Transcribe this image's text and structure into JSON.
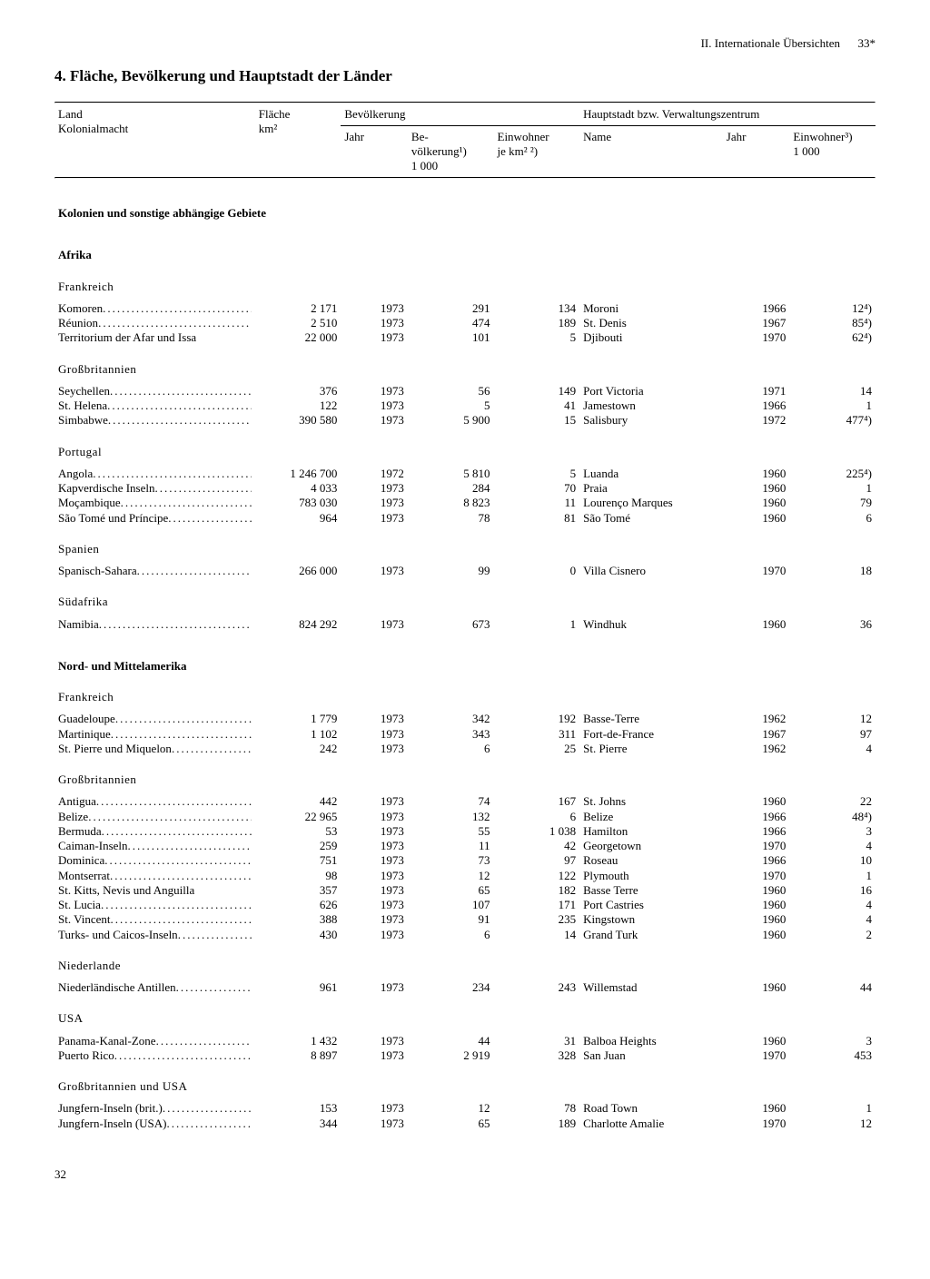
{
  "header": {
    "right": "II. Internationale Übersichten",
    "pagestar": "33*"
  },
  "title": "4. Fläche, Bevölkerung und Hauptstadt der Länder",
  "columns": {
    "country_top": "Land",
    "country_sub": "Kolonialmacht",
    "area_top": "Fläche",
    "area_sub": "km²",
    "pop_group": "Bevölkerung",
    "pop_year": "Jahr",
    "pop_val": "Be-\nvölkerung¹)\n1 000",
    "pop_dens": "Einwohner\nje km² ²)",
    "capital_group": "Hauptstadt bzw. Verwaltungszentrum",
    "cap_name": "Name",
    "cap_year": "Jahr",
    "cap_inh": "Einwohner³)\n1 000"
  },
  "section_main": "Kolonien und sonstige abhängige Gebiete",
  "footer_page": "32",
  "groups": [
    {
      "region": "Afrika",
      "powers": [
        {
          "power": "Frankreich",
          "rows": [
            {
              "name": "Komoren",
              "area": "2 171",
              "py": "1973",
              "pop": "291",
              "dens": "134",
              "cap": "Moroni",
              "cy": "1966",
              "inh": "12⁴)"
            },
            {
              "name": "Réunion",
              "area": "2 510",
              "py": "1973",
              "pop": "474",
              "dens": "189",
              "cap": "St. Denis",
              "cy": "1967",
              "inh": "85⁴)"
            },
            {
              "name": "Territorium der Afar und Issa",
              "nodots": true,
              "area": "22 000",
              "py": "1973",
              "pop": "101",
              "dens": "5",
              "cap": "Djibouti",
              "cy": "1970",
              "inh": "62⁴)"
            }
          ]
        },
        {
          "power": "Großbritannien",
          "rows": [
            {
              "name": "Seychellen",
              "area": "376",
              "py": "1973",
              "pop": "56",
              "dens": "149",
              "cap": "Port Victoria",
              "cy": "1971",
              "inh": "14"
            },
            {
              "name": "St. Helena",
              "area": "122",
              "py": "1973",
              "pop": "5",
              "dens": "41",
              "cap": "Jamestown",
              "cy": "1966",
              "inh": "1"
            },
            {
              "name": "Simbabwe",
              "area": "390 580",
              "py": "1973",
              "pop": "5 900",
              "dens": "15",
              "cap": "Salisbury",
              "cy": "1972",
              "inh": "477⁴)"
            }
          ]
        },
        {
          "power": "Portugal",
          "rows": [
            {
              "name": "Angola",
              "area": "1 246 700",
              "py": "1972",
              "pop": "5 810",
              "dens": "5",
              "cap": "Luanda",
              "cy": "1960",
              "inh": "225⁴)"
            },
            {
              "name": "Kapverdische Inseln",
              "area": "4 033",
              "py": "1973",
              "pop": "284",
              "dens": "70",
              "cap": "Praia",
              "cy": "1960",
              "inh": "1"
            },
            {
              "name": "Moçambique",
              "area": "783 030",
              "py": "1973",
              "pop": "8 823",
              "dens": "11",
              "cap": "Lourenço Marques",
              "cy": "1960",
              "inh": "79"
            },
            {
              "name": "São Tomé und Príncipe",
              "area": "964",
              "py": "1973",
              "pop": "78",
              "dens": "81",
              "cap": "São Tomé",
              "cy": "1960",
              "inh": "6"
            }
          ]
        },
        {
          "power": "Spanien",
          "rows": [
            {
              "name": "Spanisch-Sahara",
              "area": "266 000",
              "py": "1973",
              "pop": "99",
              "dens": "0",
              "cap": "Villa Cisnero",
              "cy": "1970",
              "inh": "18"
            }
          ]
        },
        {
          "power": "Südafrika",
          "rows": [
            {
              "name": "Namibia",
              "area": "824 292",
              "py": "1973",
              "pop": "673",
              "dens": "1",
              "cap": "Windhuk",
              "cy": "1960",
              "inh": "36"
            }
          ]
        }
      ]
    },
    {
      "region": "Nord- und Mittelamerika",
      "powers": [
        {
          "power": "Frankreich",
          "rows": [
            {
              "name": "Guadeloupe",
              "area": "1 779",
              "py": "1973",
              "pop": "342",
              "dens": "192",
              "cap": "Basse-Terre",
              "cy": "1962",
              "inh": "12"
            },
            {
              "name": "Martinique",
              "area": "1 102",
              "py": "1973",
              "pop": "343",
              "dens": "311",
              "cap": "Fort-de-France",
              "cy": "1967",
              "inh": "97"
            },
            {
              "name": "St. Pierre und Miquelon",
              "area": "242",
              "py": "1973",
              "pop": "6",
              "dens": "25",
              "cap": "St. Pierre",
              "cy": "1962",
              "inh": "4"
            }
          ]
        },
        {
          "power": "Großbritannien",
          "rows": [
            {
              "name": "Antigua",
              "area": "442",
              "py": "1973",
              "pop": "74",
              "dens": "167",
              "cap": "St. Johns",
              "cy": "1960",
              "inh": "22"
            },
            {
              "name": "Belize",
              "area": "22 965",
              "py": "1973",
              "pop": "132",
              "dens": "6",
              "cap": "Belize",
              "cy": "1966",
              "inh": "48⁴)"
            },
            {
              "name": "Bermuda",
              "area": "53",
              "py": "1973",
              "pop": "55",
              "dens": "1 038",
              "cap": "Hamilton",
              "cy": "1966",
              "inh": "3"
            },
            {
              "name": "Caiman-Inseln",
              "area": "259",
              "py": "1973",
              "pop": "11",
              "dens": "42",
              "cap": "Georgetown",
              "cy": "1970",
              "inh": "4"
            },
            {
              "name": "Dominica",
              "area": "751",
              "py": "1973",
              "pop": "73",
              "dens": "97",
              "cap": "Roseau",
              "cy": "1966",
              "inh": "10"
            },
            {
              "name": "Montserrat",
              "area": "98",
              "py": "1973",
              "pop": "12",
              "dens": "122",
              "cap": "Plymouth",
              "cy": "1970",
              "inh": "1"
            },
            {
              "name": "St. Kitts, Nevis und Anguilla",
              "nodots": true,
              "area": "357",
              "py": "1973",
              "pop": "65",
              "dens": "182",
              "cap": "Basse Terre",
              "cy": "1960",
              "inh": "16"
            },
            {
              "name": "St. Lucia",
              "area": "626",
              "py": "1973",
              "pop": "107",
              "dens": "171",
              "cap": "Port Castries",
              "cy": "1960",
              "inh": "4"
            },
            {
              "name": "St. Vincent",
              "area": "388",
              "py": "1973",
              "pop": "91",
              "dens": "235",
              "cap": "Kingstown",
              "cy": "1960",
              "inh": "4"
            },
            {
              "name": "Turks- und Caicos-Inseln",
              "area": "430",
              "py": "1973",
              "pop": "6",
              "dens": "14",
              "cap": "Grand Turk",
              "cy": "1960",
              "inh": "2"
            }
          ]
        },
        {
          "power": "Niederlande",
          "rows": [
            {
              "name": "Niederländische Antillen",
              "area": "961",
              "py": "1973",
              "pop": "234",
              "dens": "243",
              "cap": "Willemstad",
              "cy": "1960",
              "inh": "44"
            }
          ]
        },
        {
          "power": "USA",
          "rows": [
            {
              "name": "Panama-Kanal-Zone",
              "area": "1 432",
              "py": "1973",
              "pop": "44",
              "dens": "31",
              "cap": "Balboa Heights",
              "cy": "1960",
              "inh": "3"
            },
            {
              "name": "Puerto Rico",
              "area": "8 897",
              "py": "1973",
              "pop": "2 919",
              "dens": "328",
              "cap": "San Juan",
              "cy": "1970",
              "inh": "453"
            }
          ]
        },
        {
          "power": "Großbritannien und USA",
          "rows": [
            {
              "name": "Jungfern-Inseln (brit.)",
              "area": "153",
              "py": "1973",
              "pop": "12",
              "dens": "78",
              "cap": "Road Town",
              "cy": "1960",
              "inh": "1"
            },
            {
              "name": "Jungfern-Inseln (USA)",
              "area": "344",
              "py": "1973",
              "pop": "65",
              "dens": "189",
              "cap": "Charlotte Amalie",
              "cy": "1970",
              "inh": "12"
            }
          ]
        }
      ]
    }
  ]
}
